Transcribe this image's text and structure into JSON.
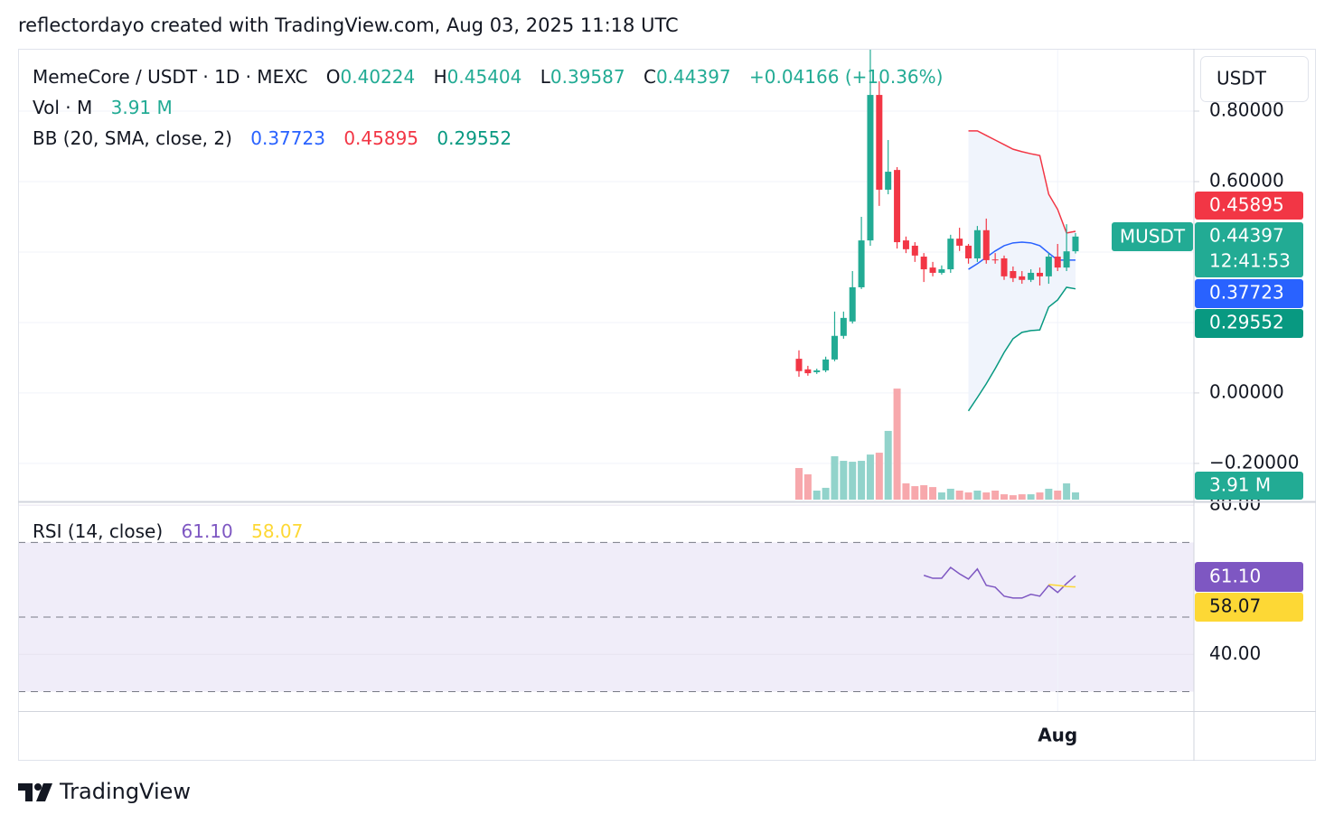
{
  "attribution": "reflectordayo created with TradingView.com, Aug 03, 2025 11:18 UTC",
  "logo": "TradingView",
  "chart_data": [
    {
      "type": "candlestick",
      "title": "MemeCore / USDT · 1D · MEXC",
      "currency": "USDT",
      "symbol_tag": "MUSDT",
      "countdown": "12:41:53",
      "ohlc_letters": [
        "O",
        "H",
        "L",
        "C"
      ],
      "change": "+0.04166 (+10.36%)",
      "categories": [
        null,
        null,
        null,
        null,
        null,
        null,
        null,
        null,
        null,
        null,
        null,
        null,
        null,
        null,
        null,
        null,
        null,
        null,
        null,
        null,
        null,
        null,
        null,
        null,
        null,
        null,
        null,
        null,
        null,
        "Aug",
        null,
        null
      ],
      "open": [
        0.097,
        0.067,
        0.059,
        0.064,
        0.095,
        0.162,
        0.203,
        0.3,
        0.433,
        0.846,
        0.577,
        0.633,
        0.433,
        0.418,
        0.387,
        0.356,
        0.341,
        0.351,
        0.438,
        0.418,
        0.382,
        0.462,
        0.379,
        0.382,
        0.346,
        0.331,
        0.321,
        0.341,
        0.331,
        0.387,
        0.356,
        0.40224
      ],
      "high": [
        0.121,
        0.077,
        0.069,
        0.103,
        0.231,
        0.231,
        0.346,
        0.5,
        0.977,
        0.885,
        0.718,
        0.641,
        0.444,
        0.428,
        0.397,
        0.372,
        0.362,
        0.449,
        0.469,
        0.423,
        0.474,
        0.495,
        0.397,
        0.39,
        0.359,
        0.346,
        0.351,
        0.356,
        0.397,
        0.423,
        0.479,
        0.45404
      ],
      "low": [
        0.046,
        0.049,
        0.054,
        0.059,
        0.09,
        0.154,
        0.197,
        0.295,
        0.418,
        0.531,
        0.564,
        0.41,
        0.397,
        0.372,
        0.315,
        0.331,
        0.336,
        0.341,
        0.403,
        0.367,
        0.372,
        0.367,
        0.367,
        0.321,
        0.315,
        0.31,
        0.315,
        0.305,
        0.31,
        0.346,
        0.346,
        0.39587
      ],
      "close": [
        0.062,
        0.056,
        0.064,
        0.095,
        0.162,
        0.213,
        0.3,
        0.433,
        0.846,
        0.577,
        0.628,
        0.428,
        0.408,
        0.39,
        0.351,
        0.341,
        0.351,
        0.438,
        0.418,
        0.382,
        0.462,
        0.377,
        0.377,
        0.331,
        0.326,
        0.321,
        0.341,
        0.331,
        0.387,
        0.356,
        0.402,
        0.44397
      ],
      "up_color": "#22ab94",
      "down_color": "#f23645",
      "ylim": [
        -0.308,
        0.977
      ],
      "yticks": [
        {
          "value": 0.8,
          "label": "0.80000"
        },
        {
          "value": 0.6,
          "label": "0.60000"
        },
        {
          "value": 0,
          "label": "0.00000"
        },
        {
          "value": -0.2,
          "label": "−0.20000"
        }
      ],
      "ygrid": [
        0.8,
        0.6,
        0.4,
        0.2,
        0,
        -0.2
      ],
      "volume": {
        "name": "Vol · M",
        "values": [
          17.1,
          13.7,
          4.9,
          6.4,
          23.5,
          21.0,
          20.5,
          21.0,
          24.4,
          25.4,
          37.2,
          60.1,
          8.8,
          7.3,
          7.8,
          6.8,
          3.9,
          5.9,
          4.9,
          3.9,
          4.9,
          3.9,
          4.9,
          2.9,
          2.4,
          2.9,
          2.9,
          3.9,
          5.9,
          4.9,
          8.8,
          3.91
        ],
        "value_labels": [
          null,
          null,
          null,
          null,
          null,
          null,
          null,
          null,
          null,
          null,
          null,
          null,
          null,
          null,
          null,
          null,
          null,
          null,
          null,
          null,
          null,
          null,
          null,
          null,
          null,
          null,
          null,
          null,
          null,
          null,
          null,
          "3.91 M"
        ],
        "up_color": "#92d3cb",
        "down_color": "#f7a8ac"
      },
      "bollinger": {
        "name": "BB (20, SMA, close, 2)",
        "fill_color": "#f0f4fc",
        "basis": {
          "color": "#2962ff",
          "values": [
            null,
            null,
            null,
            null,
            null,
            null,
            null,
            null,
            null,
            null,
            null,
            null,
            null,
            null,
            null,
            null,
            null,
            null,
            null,
            0.351,
            0.367,
            0.385,
            0.403,
            0.418,
            0.426,
            0.428,
            0.426,
            0.418,
            0.397,
            0.377,
            0.377,
            0.37723
          ]
        },
        "upper": {
          "color": "#f23645",
          "values": [
            null,
            null,
            null,
            null,
            null,
            null,
            null,
            null,
            null,
            null,
            null,
            null,
            null,
            null,
            null,
            null,
            null,
            null,
            null,
            0.744,
            0.744,
            0.731,
            0.718,
            0.705,
            0.692,
            0.685,
            0.679,
            0.674,
            0.564,
            0.521,
            0.454,
            0.45895
          ]
        },
        "lower": {
          "color": "#089981",
          "values": [
            null,
            null,
            null,
            null,
            null,
            null,
            null,
            null,
            null,
            null,
            null,
            null,
            null,
            null,
            null,
            null,
            null,
            null,
            null,
            -0.051,
            -0.013,
            0.026,
            0.069,
            0.115,
            0.154,
            0.172,
            0.177,
            0.179,
            0.244,
            0.264,
            0.3,
            0.29552
          ]
        }
      }
    },
    {
      "type": "line",
      "title": "RSI (14, close)",
      "ylim": [
        24.8,
        81.0
      ],
      "yticks": [
        {
          "value": 80,
          "label": "80.00"
        },
        {
          "value": 40,
          "label": "40.00"
        }
      ],
      "bands": [
        70,
        50,
        30
      ],
      "band_color": "#f0edf9",
      "series": [
        {
          "color": "#7e57c2",
          "values": [
            null,
            null,
            null,
            null,
            null,
            null,
            null,
            null,
            null,
            null,
            null,
            null,
            null,
            null,
            61.2,
            60.4,
            60.4,
            63.3,
            61.6,
            60.2,
            62.9,
            58.5,
            58.0,
            55.6,
            55.1,
            55.1,
            56.1,
            55.6,
            58.5,
            56.6,
            59.0,
            61.1
          ],
          "value_labels": [
            null,
            null,
            null,
            null,
            null,
            null,
            null,
            null,
            null,
            null,
            null,
            null,
            null,
            null,
            null,
            null,
            null,
            null,
            null,
            null,
            null,
            null,
            null,
            null,
            null,
            null,
            null,
            null,
            null,
            null,
            null,
            "61.10"
          ]
        },
        {
          "color": "#fdd835",
          "values": [
            null,
            null,
            null,
            null,
            null,
            null,
            null,
            null,
            null,
            null,
            null,
            null,
            null,
            null,
            null,
            null,
            null,
            null,
            null,
            null,
            null,
            null,
            null,
            null,
            null,
            null,
            null,
            null,
            58.7,
            58.5,
            58.2,
            58.07
          ]
        }
      ]
    }
  ]
}
